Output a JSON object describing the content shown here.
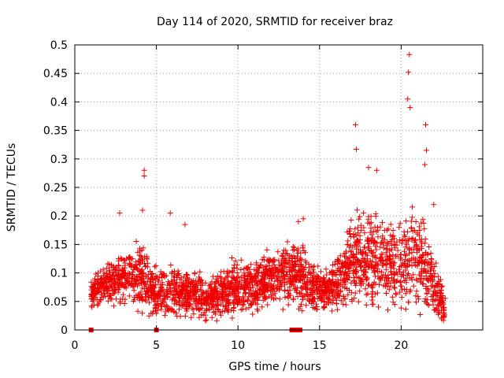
{
  "chart_data": {
    "type": "scatter",
    "title": "Day 114 of 2020, SRMTID for receiver braz",
    "xlabel": "GPS time / hours",
    "ylabel": "SRMTID / TECUs",
    "xlim": [
      0,
      25
    ],
    "ylim": [
      0,
      0.5
    ],
    "xticks": [
      0,
      5,
      10,
      15,
      20
    ],
    "yticks": [
      0,
      0.05,
      0.1,
      0.15,
      0.2,
      0.25,
      0.3,
      0.35,
      0.4,
      0.45,
      0.5
    ],
    "grid": true,
    "marker": "+",
    "color": "#ee0000",
    "highlight_points": [
      {
        "x": 4.25,
        "y": 0.28
      },
      {
        "x": 4.25,
        "y": 0.27
      },
      {
        "x": 4.15,
        "y": 0.21
      },
      {
        "x": 5.85,
        "y": 0.205
      },
      {
        "x": 2.75,
        "y": 0.205
      },
      {
        "x": 17.2,
        "y": 0.36
      },
      {
        "x": 17.25,
        "y": 0.317
      },
      {
        "x": 20.5,
        "y": 0.483
      },
      {
        "x": 20.45,
        "y": 0.452
      },
      {
        "x": 20.4,
        "y": 0.405
      },
      {
        "x": 20.55,
        "y": 0.39
      },
      {
        "x": 21.5,
        "y": 0.36
      },
      {
        "x": 21.55,
        "y": 0.315
      },
      {
        "x": 21.45,
        "y": 0.29
      },
      {
        "x": 18.0,
        "y": 0.285
      },
      {
        "x": 18.5,
        "y": 0.28
      },
      {
        "x": 13.7,
        "y": 0.19
      },
      {
        "x": 14.0,
        "y": 0.195
      },
      {
        "x": 22.0,
        "y": 0.22
      },
      {
        "x": 6.75,
        "y": 0.185
      }
    ],
    "ground_points": [
      {
        "x": 1.0,
        "y": 0.0
      },
      {
        "x": 5.0,
        "y": 0.0
      },
      {
        "x": 13.3,
        "y": 0.0
      },
      {
        "x": 13.55,
        "y": 0.0
      },
      {
        "x": 13.8,
        "y": 0.0
      }
    ],
    "envelope": [
      {
        "x": 1.0,
        "lo": 0.03,
        "hi": 0.09
      },
      {
        "x": 2.0,
        "lo": 0.04,
        "hi": 0.12
      },
      {
        "x": 3.0,
        "lo": 0.03,
        "hi": 0.14
      },
      {
        "x": 4.0,
        "lo": 0.02,
        "hi": 0.16
      },
      {
        "x": 5.0,
        "lo": 0.0,
        "hi": 0.11
      },
      {
        "x": 6.0,
        "lo": 0.01,
        "hi": 0.12
      },
      {
        "x": 7.0,
        "lo": 0.01,
        "hi": 0.11
      },
      {
        "x": 8.0,
        "lo": 0.01,
        "hi": 0.09
      },
      {
        "x": 9.0,
        "lo": 0.01,
        "hi": 0.11
      },
      {
        "x": 10.0,
        "lo": 0.01,
        "hi": 0.13
      },
      {
        "x": 11.0,
        "lo": 0.02,
        "hi": 0.12
      },
      {
        "x": 12.0,
        "lo": 0.03,
        "hi": 0.14
      },
      {
        "x": 13.0,
        "lo": 0.03,
        "hi": 0.16
      },
      {
        "x": 14.0,
        "lo": 0.02,
        "hi": 0.15
      },
      {
        "x": 15.0,
        "lo": 0.02,
        "hi": 0.11
      },
      {
        "x": 16.0,
        "lo": 0.02,
        "hi": 0.13
      },
      {
        "x": 17.0,
        "lo": 0.02,
        "hi": 0.2
      },
      {
        "x": 18.0,
        "lo": 0.02,
        "hi": 0.22
      },
      {
        "x": 19.0,
        "lo": 0.02,
        "hi": 0.2
      },
      {
        "x": 20.0,
        "lo": 0.01,
        "hi": 0.19
      },
      {
        "x": 21.0,
        "lo": 0.01,
        "hi": 0.23
      },
      {
        "x": 22.0,
        "lo": 0.0,
        "hi": 0.13
      },
      {
        "x": 22.7,
        "lo": 0.0,
        "hi": 0.07
      }
    ],
    "fill_point_count": 2600
  }
}
